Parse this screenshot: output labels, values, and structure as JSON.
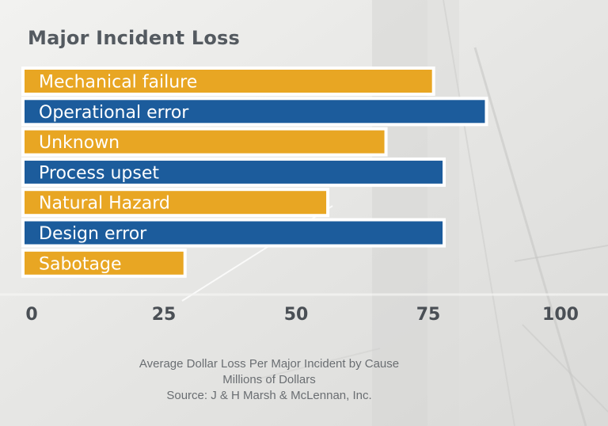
{
  "chart_data": {
    "type": "bar",
    "orientation": "horizontal",
    "title": "Major Incident Loss",
    "categories": [
      "Mechanical failure",
      "Operational error",
      "Unknown",
      "Process upset",
      "Natural Hazard",
      "Design error",
      "Sabotage"
    ],
    "values": [
      76,
      86,
      67,
      78,
      56,
      78,
      29
    ],
    "bar_colors": [
      "#e8a623",
      "#1c5c9c",
      "#e8a623",
      "#1c5c9c",
      "#e8a623",
      "#1c5c9c",
      "#e8a623"
    ],
    "xlim": [
      0,
      100
    ],
    "xticks": [
      "0",
      "25",
      "50",
      "75",
      "100"
    ],
    "grid": false,
    "legend": "none"
  },
  "caption": {
    "line1": "Average Dollar Loss Per Major Incident by Cause",
    "line2": "Millions of Dollars",
    "line3": "Source: J & H Marsh & McLennan, Inc."
  },
  "colors": {
    "background": "#e8e8e6",
    "title": "#545a60",
    "bar_label": "#ffffff",
    "tick": "#4a4f55",
    "caption": "#6a6e72"
  }
}
